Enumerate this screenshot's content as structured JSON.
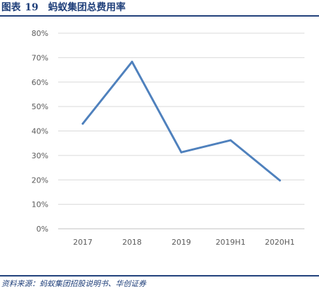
{
  "figure": {
    "label": "图表",
    "number": "19",
    "title": "蚂蚁集团总费用率"
  },
  "source": "资料来源：蚂蚁集团招股说明书、华创证券",
  "colors": {
    "line": "#4f81bd",
    "header_rule": "#1f3f7a",
    "grid": "#d9d9d9"
  },
  "chart_data": {
    "type": "line",
    "title": "蚂蚁集团总费用率",
    "categories": [
      "2017",
      "2018",
      "2019",
      "2019H1",
      "2020H1"
    ],
    "series": [
      {
        "values": [
          0.43,
          0.683,
          0.313,
          0.362,
          0.198
        ]
      }
    ],
    "ylim": [
      0,
      0.8
    ],
    "yticks": [
      "0%",
      "10%",
      "20%",
      "30%",
      "40%",
      "50%",
      "60%",
      "70%",
      "80%"
    ],
    "grid": true,
    "legend": "none"
  }
}
